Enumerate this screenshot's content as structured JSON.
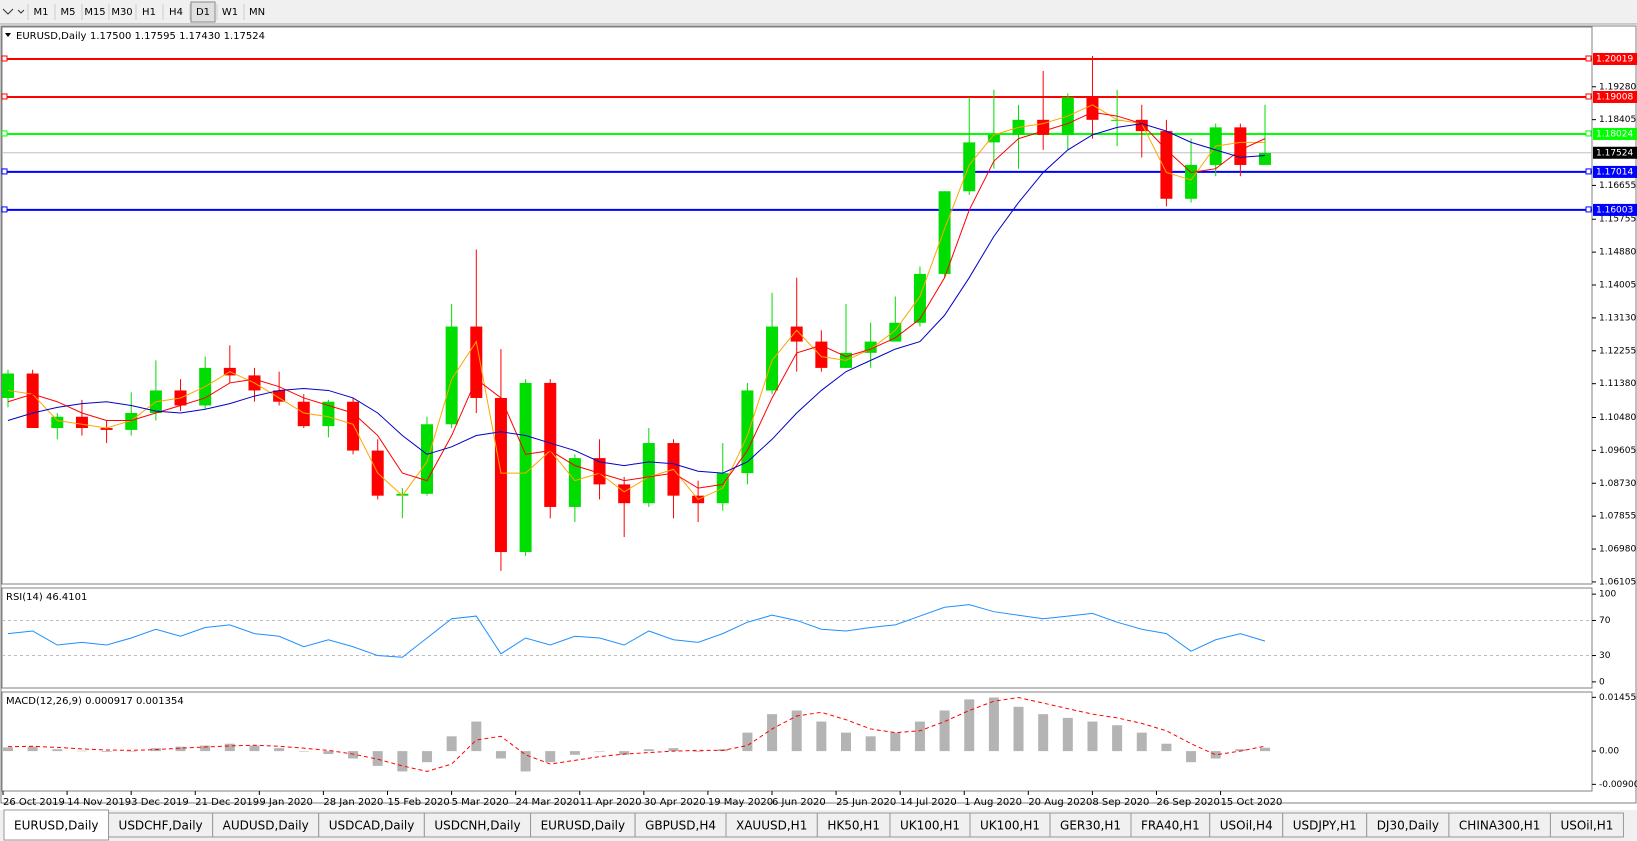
{
  "toolbar": {
    "timeframes": [
      "M1",
      "M5",
      "M15",
      "M30",
      "H1",
      "H4",
      "D1",
      "W1",
      "MN"
    ]
  },
  "tabs": [
    "EURUSD,Daily",
    "USDCHF,Daily",
    "AUDUSD,Daily",
    "USDCAD,Daily",
    "USDCNH,Daily",
    "EURUSD,Daily",
    "GBPUSD,H4",
    "XAUUSD,H1",
    "HK50,H1",
    "UK100,H1",
    "UK100,H1",
    "GER30,H1",
    "FRA40,H1",
    "USOil,H4",
    "USDJPY,H1",
    "DJ30,Daily",
    "CHINA300,H1",
    "USOil,H1"
  ],
  "chart_data": [
    {
      "type": "candlestick",
      "symbol": "EURUSD,Daily",
      "quote": "1.17500 1.17595 1.17430 1.17524",
      "up_color": "#00dd00",
      "down_color": "#ff0000",
      "candles": [
        [
          1.11,
          1.1175,
          1.1075,
          1.1165
        ],
        [
          1.1165,
          1.1175,
          1.102,
          1.102
        ],
        [
          1.102,
          1.106,
          1.099,
          1.105
        ],
        [
          1.105,
          1.1095,
          1.1,
          1.102
        ],
        [
          1.102,
          1.104,
          1.098,
          1.1015
        ],
        [
          1.1015,
          1.1115,
          1.1,
          1.106
        ],
        [
          1.106,
          1.12,
          1.104,
          1.112
        ],
        [
          1.112,
          1.115,
          1.1065,
          1.108
        ],
        [
          1.108,
          1.121,
          1.107,
          1.118
        ],
        [
          1.118,
          1.124,
          1.114,
          1.116
        ],
        [
          1.116,
          1.118,
          1.109,
          1.112
        ],
        [
          1.112,
          1.117,
          1.108,
          1.109
        ],
        [
          1.109,
          1.111,
          1.102,
          1.1025
        ],
        [
          1.1025,
          1.1095,
          1.0995,
          1.109
        ],
        [
          1.109,
          1.11,
          1.095,
          1.096
        ],
        [
          1.096,
          1.099,
          1.083,
          1.084
        ],
        [
          1.084,
          1.086,
          1.078,
          1.0845
        ],
        [
          1.0845,
          1.105,
          1.084,
          1.103
        ],
        [
          1.103,
          1.135,
          1.102,
          1.129
        ],
        [
          1.129,
          1.1495,
          1.106,
          1.11
        ],
        [
          1.11,
          1.123,
          1.064,
          1.069
        ],
        [
          1.069,
          1.115,
          1.068,
          1.114
        ],
        [
          1.114,
          1.115,
          1.078,
          1.081
        ],
        [
          1.081,
          1.095,
          1.077,
          1.094
        ],
        [
          1.094,
          1.099,
          1.083,
          1.087
        ],
        [
          1.087,
          1.089,
          1.073,
          1.082
        ],
        [
          1.082,
          1.102,
          1.081,
          1.098
        ],
        [
          1.098,
          1.099,
          1.078,
          1.084
        ],
        [
          1.084,
          1.088,
          1.077,
          1.082
        ],
        [
          1.082,
          1.098,
          1.08,
          1.09
        ],
        [
          1.09,
          1.114,
          1.087,
          1.112
        ],
        [
          1.112,
          1.138,
          1.111,
          1.129
        ],
        [
          1.129,
          1.142,
          1.117,
          1.125
        ],
        [
          1.125,
          1.128,
          1.117,
          1.118
        ],
        [
          1.118,
          1.135,
          1.118,
          1.122
        ],
        [
          1.122,
          1.13,
          1.118,
          1.125
        ],
        [
          1.125,
          1.137,
          1.125,
          1.13
        ],
        [
          1.13,
          1.145,
          1.129,
          1.143
        ],
        [
          1.143,
          1.165,
          1.142,
          1.165
        ],
        [
          1.165,
          1.19,
          1.164,
          1.178
        ],
        [
          1.178,
          1.192,
          1.171,
          1.18
        ],
        [
          1.18,
          1.188,
          1.171,
          1.184
        ],
        [
          1.184,
          1.197,
          1.176,
          1.18
        ],
        [
          1.18,
          1.191,
          1.176,
          1.19
        ],
        [
          1.19,
          1.201,
          1.179,
          1.184
        ],
        [
          1.184,
          1.192,
          1.177,
          1.184
        ],
        [
          1.184,
          1.188,
          1.174,
          1.181
        ],
        [
          1.181,
          1.184,
          1.161,
          1.163
        ],
        [
          1.163,
          1.179,
          1.162,
          1.172
        ],
        [
          1.172,
          1.183,
          1.169,
          1.182
        ],
        [
          1.182,
          1.183,
          1.169,
          1.172
        ],
        [
          1.172,
          1.188,
          1.172,
          1.1752
        ]
      ],
      "series": [
        {
          "color": "#ffa500",
          "values": [
            1.112,
            1.111,
            1.104,
            1.103,
            1.102,
            1.104,
            1.109,
            1.11,
            1.113,
            1.117,
            1.114,
            1.11,
            1.106,
            1.105,
            1.103,
            1.09,
            1.084,
            1.093,
            1.115,
            1.125,
            1.09,
            1.09,
            1.096,
            1.088,
            1.09,
            1.085,
            1.089,
            1.091,
            1.083,
            1.086,
            1.1,
            1.12,
            1.128,
            1.121,
            1.12,
            1.123,
            1.128,
            1.137,
            1.155,
            1.172,
            1.18,
            1.182,
            1.183,
            1.185,
            1.188,
            1.184,
            1.183,
            1.17,
            1.168,
            1.177,
            1.178,
            1.178
          ]
        },
        {
          "color": "#ff0000",
          "values": [
            1.109,
            1.111,
            1.109,
            1.106,
            1.104,
            1.104,
            1.106,
            1.108,
            1.11,
            1.114,
            1.115,
            1.113,
            1.11,
            1.108,
            1.106,
            1.1,
            1.09,
            1.088,
            1.1,
            1.115,
            1.11,
            1.095,
            1.096,
            1.092,
            1.09,
            1.088,
            1.089,
            1.09,
            1.086,
            1.087,
            1.096,
            1.11,
            1.122,
            1.124,
            1.121,
            1.123,
            1.126,
            1.131,
            1.142,
            1.16,
            1.173,
            1.179,
            1.181,
            1.183,
            1.186,
            1.185,
            1.183,
            1.176,
            1.17,
            1.171,
            1.176,
            1.179
          ]
        },
        {
          "color": "#0000c8",
          "values": [
            1.104,
            1.106,
            1.1075,
            1.1085,
            1.109,
            1.108,
            1.1065,
            1.106,
            1.107,
            1.1085,
            1.1105,
            1.112,
            1.1125,
            1.112,
            1.11,
            1.106,
            1.1,
            1.095,
            1.097,
            1.1,
            1.101,
            1.1,
            1.098,
            1.096,
            1.093,
            1.092,
            1.093,
            1.0925,
            1.0905,
            1.09,
            1.093,
            1.099,
            1.106,
            1.112,
            1.117,
            1.12,
            1.123,
            1.125,
            1.132,
            1.142,
            1.153,
            1.162,
            1.17,
            1.176,
            1.18,
            1.182,
            1.183,
            1.181,
            1.178,
            1.176,
            1.174,
            1.1745
          ]
        }
      ],
      "levels": [
        {
          "value": 1.20019,
          "color": "#ff0000"
        },
        {
          "value": 1.19008,
          "color": "#ff0000"
        },
        {
          "value": 1.18024,
          "color": "#00ff00"
        },
        {
          "value": 1.17014,
          "color": "#0000ff"
        },
        {
          "value": 1.16003,
          "color": "#0000ff"
        }
      ],
      "last_price": {
        "value": 1.17524,
        "color": "#000000"
      },
      "ylim": [
        1.0605,
        1.2087
      ],
      "yticks": [
        {
          "value": 1.1928,
          "label": "1.19280"
        },
        1.18405,
        1.16655,
        1.15755,
        {
          "value": 1.1488,
          "label": "1.14880"
        },
        1.14005,
        {
          "value": 1.1313,
          "label": "1.13130"
        },
        1.12255,
        {
          "value": 1.1138,
          "label": "1.11380"
        },
        {
          "value": 1.1048,
          "label": "1.10480"
        },
        1.09605,
        {
          "value": 1.0873,
          "label": "1.08730"
        },
        1.07855,
        {
          "value": 1.0698,
          "label": "1.06980"
        },
        1.06105
      ],
      "x_labels": [
        "26 Oct 2019",
        "14 Nov 2019",
        "3 Dec 2019",
        "21 Dec 2019",
        "9 Jan 2020",
        "28 Jan 2020",
        "15 Feb 2020",
        "5 Mar 2020",
        "24 Mar 2020",
        "11 Apr 2020",
        "30 Apr 2020",
        "19 May 2020",
        "6 Jun 2020",
        "25 Jun 2020",
        "14 Jul 2020",
        "1 Aug 2020",
        "20 Aug 2020",
        "8 Sep 2020",
        "26 Sep 2020",
        "15 Oct 2020"
      ]
    },
    {
      "type": "line",
      "title": "RSI(14) 46.4101",
      "color": "#1e90ff",
      "values": [
        55,
        58,
        42,
        45,
        42,
        50,
        60,
        52,
        62,
        65,
        55,
        52,
        40,
        48,
        40,
        30,
        28,
        50,
        72,
        75,
        32,
        50,
        42,
        52,
        50,
        42,
        58,
        48,
        45,
        55,
        68,
        76,
        70,
        60,
        58,
        62,
        65,
        75,
        85,
        88,
        80,
        76,
        72,
        75,
        78,
        68,
        60,
        55,
        35,
        48,
        55,
        46.4101
      ],
      "levels": [
        70,
        30
      ],
      "ylim": [
        -7,
        107
      ],
      "yticks": [
        100,
        70,
        30,
        0
      ]
    },
    {
      "type": "bar",
      "title": "MACD(12,26,9) 0.000917 0.001354",
      "color": "#b4b4b4",
      "values": [
        0.001,
        0.0012,
        0.0005,
        0.0001,
        -0.0002,
        0.0,
        0.0008,
        0.0012,
        0.0015,
        0.002,
        0.0015,
        0.0008,
        0.0,
        -0.0008,
        -0.002,
        -0.004,
        -0.0055,
        -0.003,
        0.004,
        0.008,
        -0.002,
        -0.0055,
        -0.003,
        -0.001,
        0.0,
        -0.001,
        0.0005,
        0.0008,
        -0.0002,
        0.0005,
        0.005,
        0.01,
        0.011,
        0.008,
        0.005,
        0.004,
        0.005,
        0.008,
        0.011,
        0.014,
        0.0145,
        0.012,
        0.01,
        0.009,
        0.008,
        0.007,
        0.005,
        0.002,
        -0.003,
        -0.002,
        0.0005,
        0.000917
      ],
      "signal": {
        "color": "#ff0000",
        "values": [
          0.0012,
          0.0013,
          0.001,
          0.0006,
          0.0003,
          0.0002,
          0.0004,
          0.0008,
          0.0011,
          0.0014,
          0.0016,
          0.0013,
          0.0008,
          0.0002,
          -0.0008,
          -0.0022,
          -0.004,
          -0.0055,
          -0.0035,
          0.003,
          0.004,
          -0.001,
          -0.0035,
          -0.0025,
          -0.0015,
          -0.0008,
          -0.0004,
          0.0,
          0.0002,
          0.0002,
          0.0015,
          0.006,
          0.0095,
          0.0105,
          0.0085,
          0.006,
          0.005,
          0.0055,
          0.008,
          0.011,
          0.0135,
          0.0145,
          0.013,
          0.0115,
          0.01,
          0.009,
          0.0075,
          0.0055,
          0.002,
          -0.001,
          0.0,
          0.001354
        ]
      },
      "ylim": [
        -0.0108,
        0.016
      ],
      "yticks": [
        0.014556,
        {
          "value": 0,
          "label": "0.00"
        },
        -0.009001
      ]
    }
  ]
}
